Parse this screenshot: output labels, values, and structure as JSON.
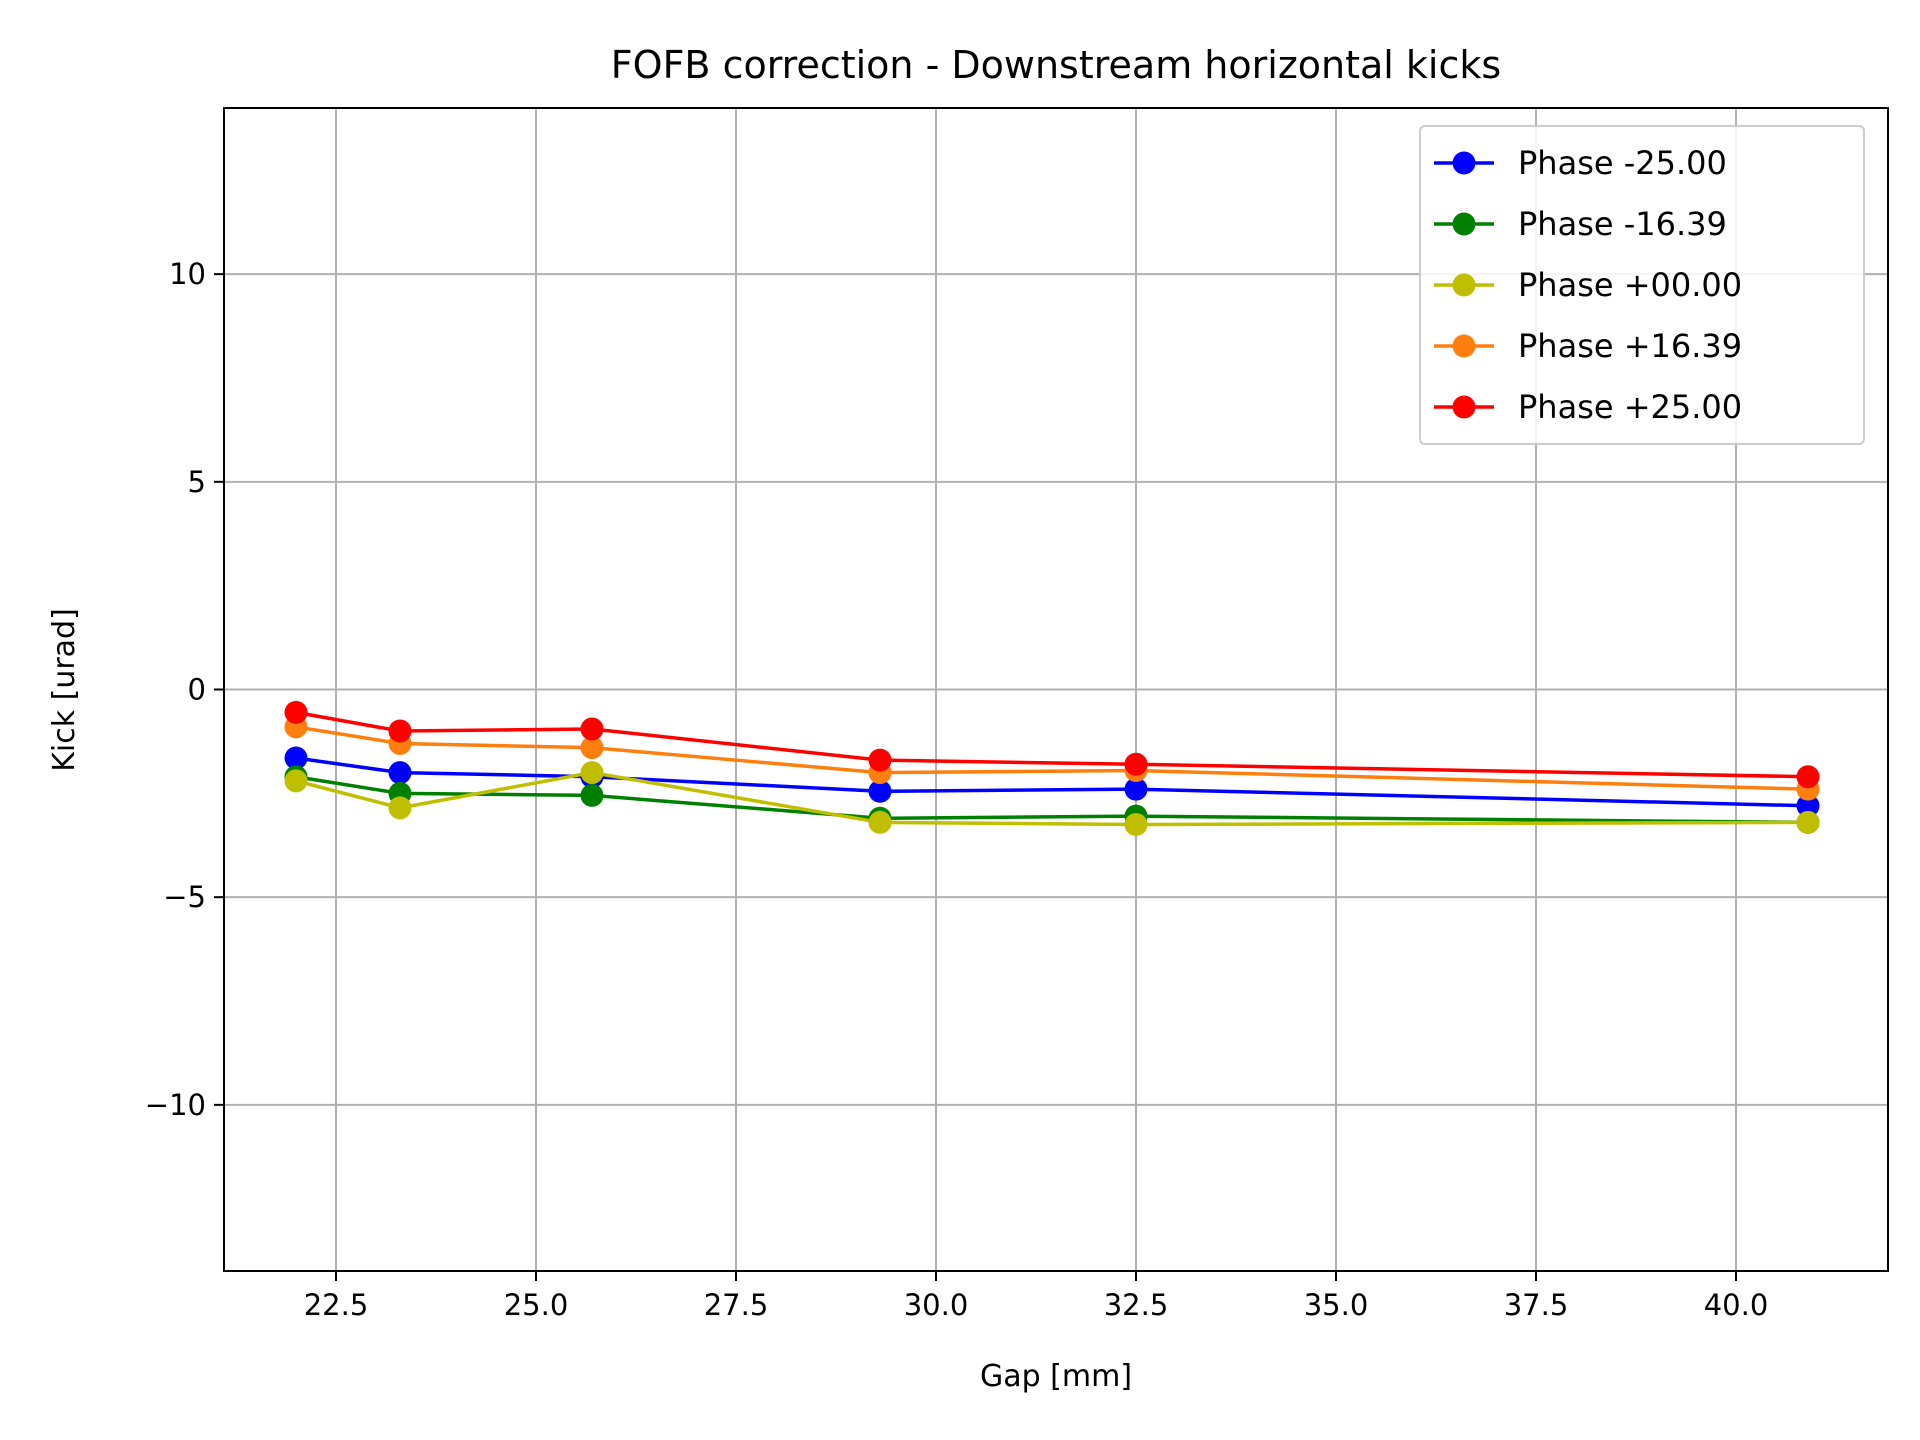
{
  "chart_data": {
    "type": "line",
    "title": "FOFB correction - Downstream horizontal kicks",
    "xlabel": "Gap [mm]",
    "ylabel": "Kick [urad]",
    "xlim": [
      21.1,
      41.9
    ],
    "ylim": [
      -14,
      14
    ],
    "xticks": [
      22.5,
      25.0,
      27.5,
      30.0,
      32.5,
      35.0,
      37.5,
      40.0
    ],
    "xtick_labels": [
      "22.5",
      "25.0",
      "27.5",
      "30.0",
      "32.5",
      "35.0",
      "37.5",
      "40.0"
    ],
    "yticks": [
      10,
      5,
      0,
      -5,
      -10
    ],
    "ytick_labels": [
      "10",
      "5",
      "0",
      "−5",
      "−10"
    ],
    "grid": true,
    "legend_position": "top-right",
    "x": [
      22.0,
      23.3,
      25.7,
      29.3,
      32.5,
      40.9
    ],
    "series": [
      {
        "name": "Phase -25.00",
        "color": "#0000ff",
        "values": [
          -1.65,
          -2.0,
          -2.1,
          -2.45,
          -2.4,
          -2.8
        ]
      },
      {
        "name": "Phase -16.39",
        "color": "#008000",
        "values": [
          -2.1,
          -2.5,
          -2.55,
          -3.1,
          -3.05,
          -3.2
        ]
      },
      {
        "name": "Phase +00.00",
        "color": "#bfbf00",
        "values": [
          -2.2,
          -2.85,
          -2.0,
          -3.2,
          -3.25,
          -3.2
        ]
      },
      {
        "name": "Phase +16.39",
        "color": "#ff7f0e",
        "values": [
          -0.9,
          -1.3,
          -1.4,
          -2.0,
          -1.95,
          -2.4
        ]
      },
      {
        "name": "Phase +25.00",
        "color": "#ff0000",
        "values": [
          -0.55,
          -1.0,
          -0.95,
          -1.7,
          -1.8,
          -2.1
        ]
      }
    ]
  }
}
